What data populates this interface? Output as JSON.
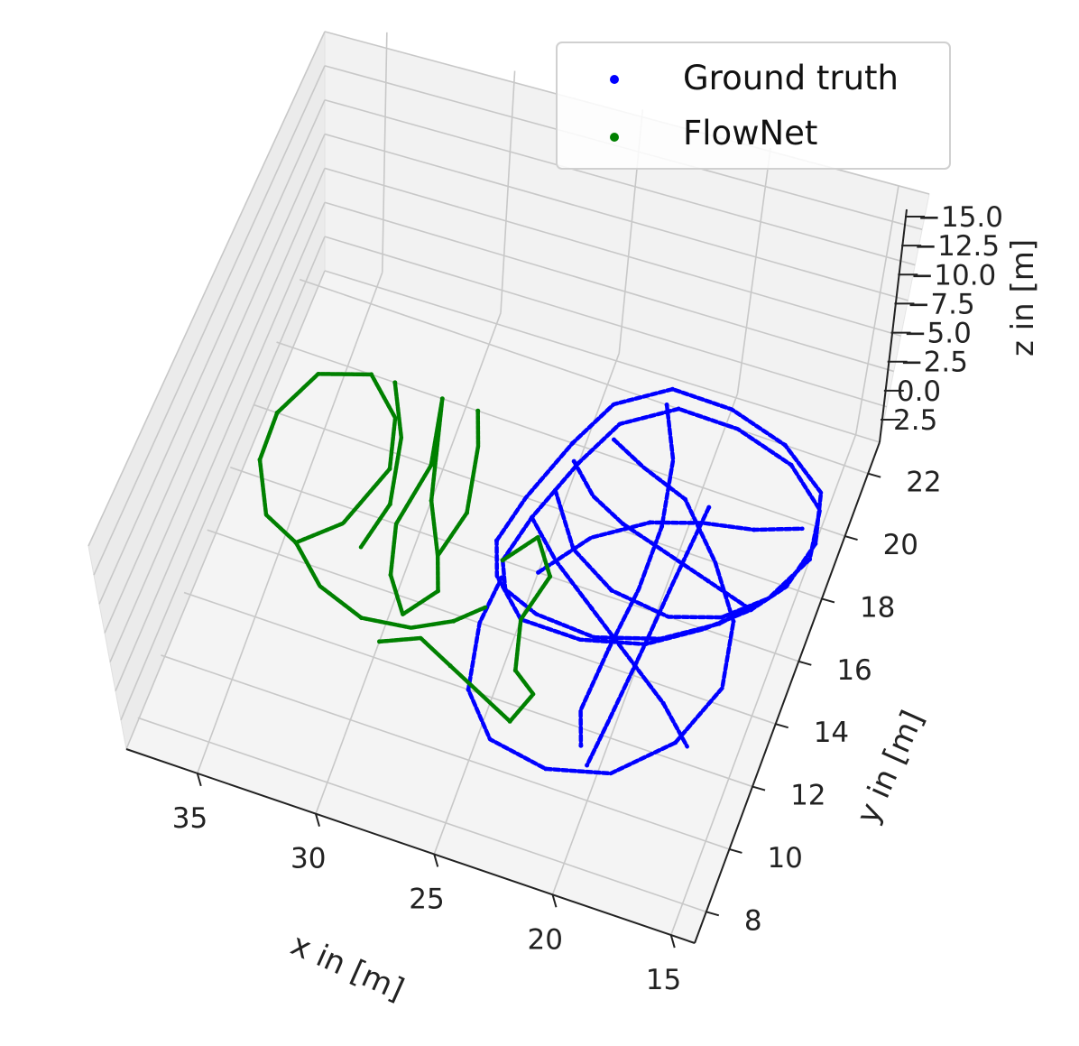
{
  "chart_data": {
    "type": "scatter",
    "projection": "3d",
    "xlabel": "x in [m]",
    "ylabel": "y in [m]",
    "zlabel": "z in [m]",
    "xticks": [
      "35",
      "30",
      "25",
      "20",
      "15"
    ],
    "yticks": [
      "8",
      "10",
      "12",
      "14",
      "16",
      "18",
      "20",
      "22"
    ],
    "zticks": [
      "−15.0",
      "−12.5",
      "−10.0",
      "−7.5",
      "−5.0",
      "−2.5",
      "0.0",
      "2.5"
    ],
    "xlim": [
      14,
      38
    ],
    "ylim": [
      7,
      23
    ],
    "grid": true,
    "legend": {
      "placement": "top-right"
    },
    "series": [
      {
        "name": "Ground truth",
        "color": "#0000ff",
        "loops": [
          [
            [
              27,
              16.5
            ],
            [
              26.5,
              18
            ],
            [
              25.5,
              20
            ],
            [
              24.5,
              21.5
            ],
            [
              22.5,
              22.5
            ],
            [
              20,
              22.5
            ],
            [
              17.5,
              22
            ],
            [
              15.5,
              21
            ],
            [
              15,
              19.5
            ],
            [
              15.5,
              18
            ],
            [
              16.5,
              17
            ],
            [
              18,
              16
            ],
            [
              20,
              15
            ],
            [
              22.5,
              14.5
            ],
            [
              25,
              14.5
            ],
            [
              26.5,
              15.5
            ],
            [
              27,
              16.5
            ]
          ],
          [
            [
              26.5,
              16
            ],
            [
              26,
              17.5
            ],
            [
              25,
              19.5
            ],
            [
              24,
              21
            ],
            [
              22,
              22
            ],
            [
              19.5,
              22
            ],
            [
              17,
              21.5
            ],
            [
              15.3,
              20.5
            ],
            [
              15,
              19
            ],
            [
              16,
              17.5
            ],
            [
              17.5,
              16.3
            ],
            [
              19.5,
              15.3
            ],
            [
              22,
              14.7
            ],
            [
              24.5,
              14.8
            ],
            [
              26,
              15.2
            ],
            [
              26.5,
              16
            ]
          ],
          [
            [
              25,
              16
            ],
            [
              23.5,
              17.5
            ],
            [
              21.5,
              18.5
            ],
            [
              19.5,
              19
            ],
            [
              17.5,
              19.3
            ],
            [
              15.7,
              19.8
            ]
          ],
          [
            [
              24,
              20.5
            ],
            [
              22.5,
              20
            ],
            [
              20.5,
              19.5
            ],
            [
              18.5,
              18
            ],
            [
              17,
              16.5
            ],
            [
              16.5,
              14.5
            ],
            [
              17.5,
              12.5
            ],
            [
              19.5,
              11
            ],
            [
              22,
              10.5
            ],
            [
              24.5,
              10.8
            ],
            [
              26,
              12
            ],
            [
              26.5,
              14
            ],
            [
              26.3,
              15.5
            ]
          ],
          [
            [
              22.5,
              22
            ],
            [
              21.5,
              20.5
            ],
            [
              21,
              18.5
            ],
            [
              21,
              16.5
            ],
            [
              21.3,
              14.5
            ],
            [
              21.5,
              12.5
            ],
            [
              21,
              11.5
            ]
          ],
          [
            [
              19.5,
              19.5
            ],
            [
              19.8,
              17
            ],
            [
              20,
              15
            ],
            [
              20.3,
              12.5
            ],
            [
              20.5,
              11
            ]
          ],
          [
            [
              25.5,
              18.5
            ],
            [
              24,
              17
            ],
            [
              22,
              16.2
            ],
            [
              19.5,
              16
            ],
            [
              17.5,
              16.5
            ],
            [
              16,
              17.5
            ]
          ],
          [
            [
              26,
              17.5
            ],
            [
              24.5,
              16.5
            ],
            [
              22.5,
              15.5
            ],
            [
              20.5,
              14.5
            ],
            [
              18.5,
              13.5
            ],
            [
              17,
              12.5
            ]
          ],
          [
            [
              25.2,
              19.5
            ],
            [
              24,
              18.7
            ],
            [
              22.5,
              18.2
            ],
            [
              20.5,
              17.8
            ],
            [
              18.5,
              17.4
            ],
            [
              16.5,
              17
            ]
          ]
        ]
      },
      {
        "name": "FlowNet",
        "color": "#008000",
        "loops": [
          [
            [
              37,
              18
            ],
            [
              36,
              19.5
            ],
            [
              34,
              20
            ],
            [
              32.5,
              19
            ],
            [
              32,
              17.5
            ],
            [
              33,
              15.5
            ],
            [
              34.5,
              14.5
            ],
            [
              36,
              15
            ],
            [
              37,
              16.5
            ],
            [
              37,
              18
            ]
          ],
          [
            [
              31,
              20
            ],
            [
              30.5,
              18.5
            ],
            [
              30,
              17
            ],
            [
              29,
              15.5
            ],
            [
              28.5,
              14.5
            ],
            [
              29.5,
              13.5
            ],
            [
              30.5,
              14.5
            ],
            [
              31,
              16
            ],
            [
              30.5,
              18
            ],
            [
              31,
              20
            ]
          ],
          [
            [
              34.5,
              14.5
            ],
            [
              33,
              13.5
            ],
            [
              31,
              13
            ],
            [
              29,
              13.2
            ],
            [
              27.5,
              13.8
            ],
            [
              26.5,
              14.5
            ]
          ],
          [
            [
              26.5,
              16
            ],
            [
              25.5,
              17
            ],
            [
              24.5,
              16
            ],
            [
              25,
              14.5
            ],
            [
              24.5,
              13
            ],
            [
              23.5,
              12.5
            ],
            [
              24,
              11.5
            ],
            [
              25.5,
              12
            ],
            [
              27,
              12.5
            ],
            [
              28.5,
              13
            ],
            [
              30,
              12.5
            ]
          ],
          [
            [
              29.5,
              20
            ],
            [
              29,
              19
            ],
            [
              28.5,
              17
            ],
            [
              29,
              15.5
            ]
          ],
          [
            [
              33,
              20
            ],
            [
              32,
              18.5
            ],
            [
              31.5,
              16.5
            ],
            [
              32,
              15
            ]
          ]
        ]
      }
    ]
  }
}
